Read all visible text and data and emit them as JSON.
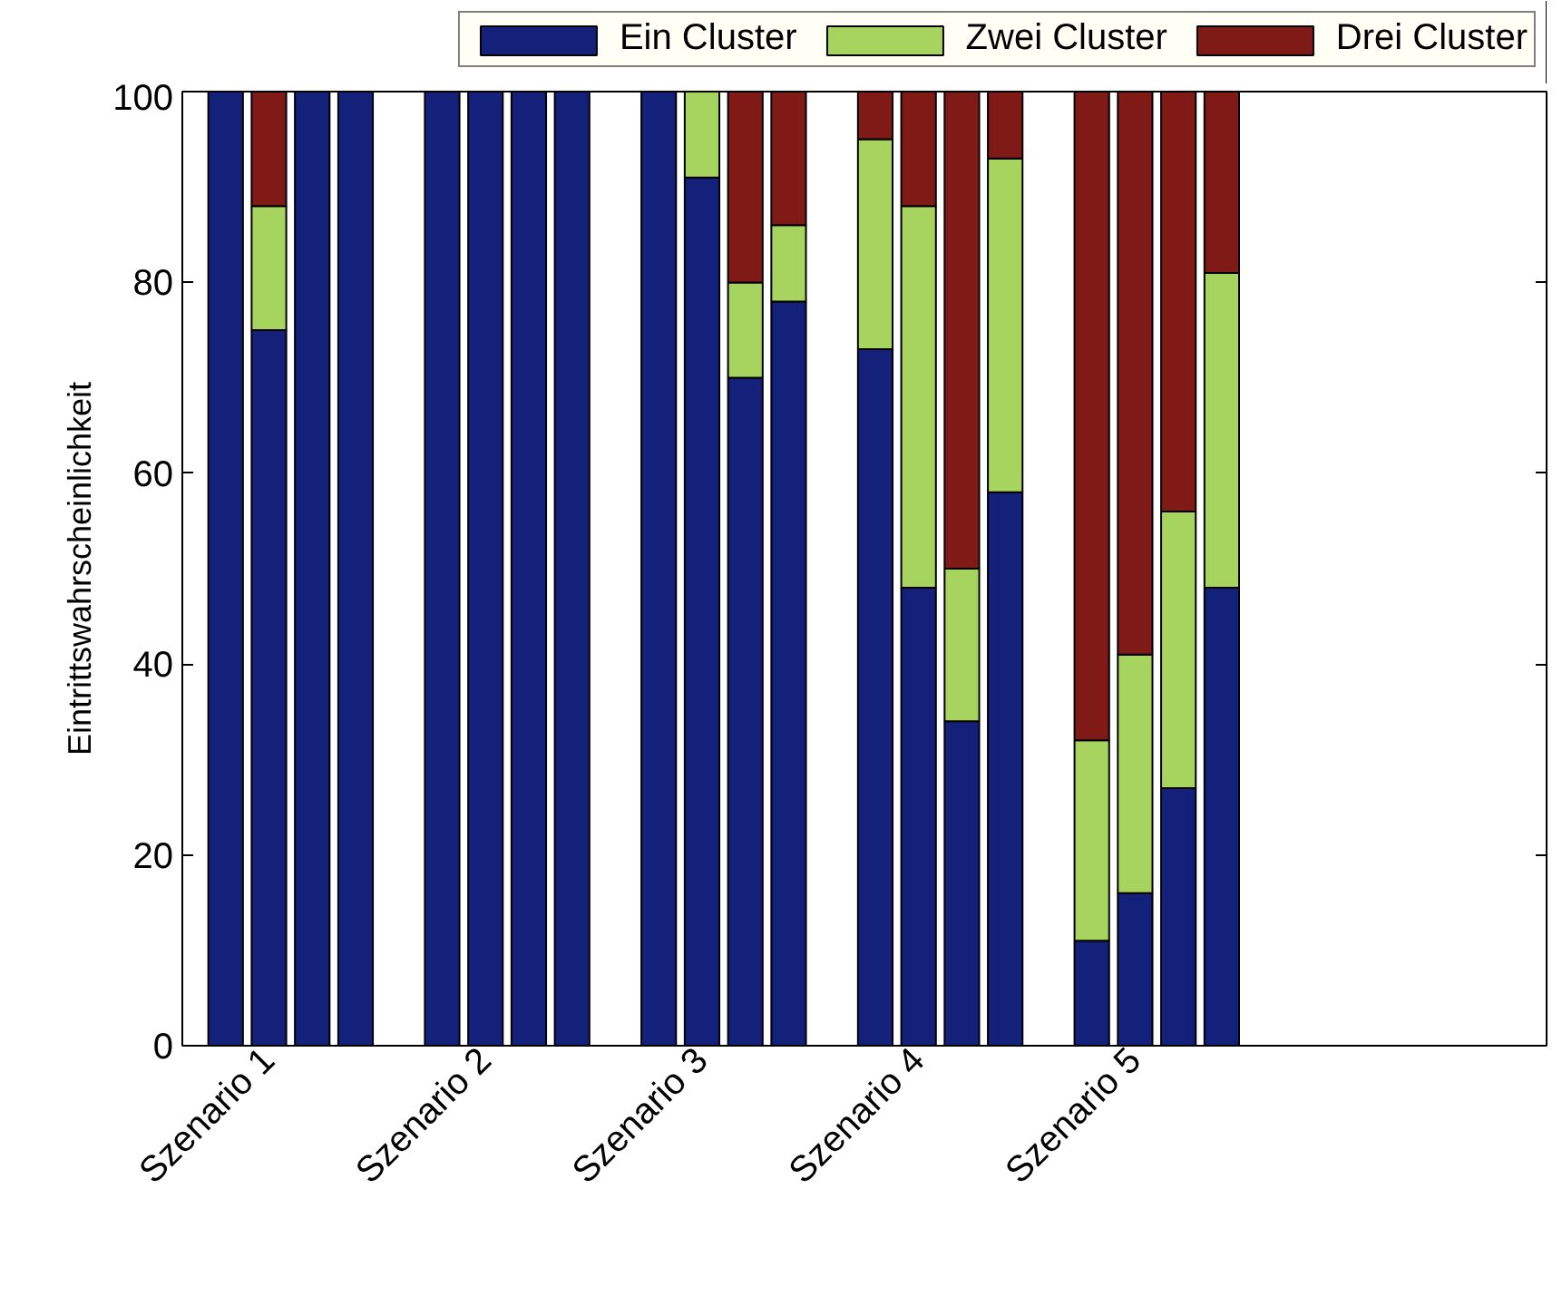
{
  "chart_data": {
    "type": "bar",
    "stacked": true,
    "ylabel": "Eintrittswahrscheinlichkeit",
    "categories": [
      null,
      "Szenario 1",
      null,
      null,
      null,
      "Szenario 2",
      null,
      null,
      null,
      "Szenario 3",
      null,
      null,
      null,
      "Szenario 4",
      null,
      null,
      null,
      "Szenario 5",
      null,
      null
    ],
    "ylim": [
      0,
      100
    ],
    "yticks": [
      0,
      20,
      40,
      60,
      80,
      100
    ],
    "grid": false,
    "legend": "top",
    "series": [
      {
        "name": "Ein Cluster",
        "color": "#13217a",
        "values": [
          100,
          75,
          100,
          100,
          100,
          100,
          100,
          100,
          100,
          91,
          70,
          78,
          73,
          48,
          34,
          58,
          11,
          16,
          27,
          48
        ]
      },
      {
        "name": "Zwei Cluster",
        "color": "#a6d45e",
        "values": [
          null,
          13,
          null,
          null,
          null,
          null,
          null,
          null,
          null,
          9,
          10,
          8,
          22,
          40,
          16,
          35,
          21,
          25,
          29,
          33
        ]
      },
      {
        "name": "Drei Cluster",
        "color": "#7f1a16",
        "values": [
          null,
          12,
          null,
          null,
          null,
          null,
          null,
          null,
          null,
          null,
          20,
          14,
          5,
          12,
          50,
          7,
          68,
          59,
          44,
          19
        ]
      }
    ]
  }
}
